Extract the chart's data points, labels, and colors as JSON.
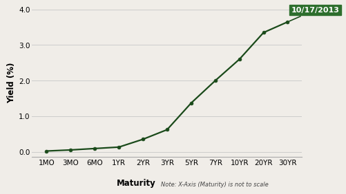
{
  "x_labels": [
    "1MO",
    "3MO",
    "6MO",
    "1YR",
    "2YR",
    "3YR",
    "5YR",
    "7YR",
    "10YR",
    "20YR",
    "30YR"
  ],
  "y_values": [
    0.02,
    0.05,
    0.09,
    0.13,
    0.35,
    0.62,
    1.37,
    2.0,
    2.6,
    3.35,
    3.65
  ],
  "line_color": "#1a4a1a",
  "marker": "o",
  "marker_size": 3.5,
  "marker_color": "#1a4a1a",
  "xlabel": "Maturity",
  "xlabel_note": "Note: X-Axis (Maturity) is not to scale",
  "ylabel": "Yield (%)",
  "ylim": [
    -0.15,
    4.05
  ],
  "yticks": [
    0.0,
    1.0,
    2.0,
    3.0,
    4.0
  ],
  "annotation_text": "10/17/2013",
  "annotation_bg": "#2d6e2d",
  "annotation_text_color": "#ffffff",
  "bg_color": "#f0ede8",
  "plot_bg_color": "#f0ede8",
  "grid_color": "#cccccc",
  "axis_label_fontsize": 8.5,
  "tick_fontsize": 7.5,
  "note_fontsize": 6.0
}
